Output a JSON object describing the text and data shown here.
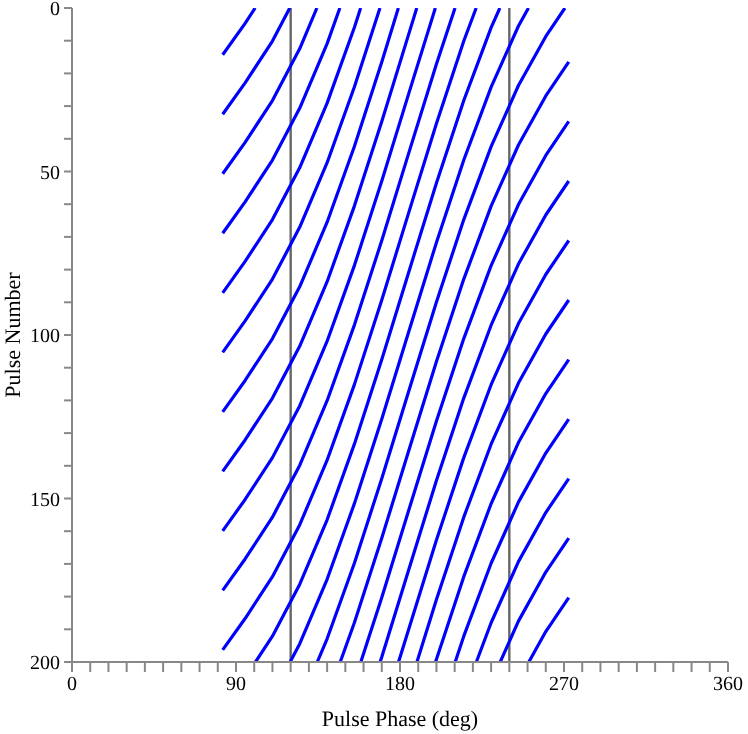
{
  "chart_data": {
    "type": "line",
    "xlabel": "Pulse Phase (deg)",
    "ylabel": "Pulse Number",
    "xlim": [
      0,
      360
    ],
    "ylim": [
      200,
      0
    ],
    "xticks": [
      0,
      {
        "value": 10,
        "label": null
      },
      {
        "value": 20,
        "label": null
      },
      {
        "value": 30,
        "label": null
      },
      {
        "value": 40,
        "label": null
      },
      {
        "value": 50,
        "label": null
      },
      {
        "value": 60,
        "label": null
      },
      {
        "value": 70,
        "label": null
      },
      {
        "value": 80,
        "label": null
      },
      90,
      {
        "value": 100,
        "label": null
      },
      {
        "value": 110,
        "label": null
      },
      {
        "value": 120,
        "label": null
      },
      {
        "value": 130,
        "label": null
      },
      {
        "value": 140,
        "label": null
      },
      {
        "value": 150,
        "label": null
      },
      {
        "value": 160,
        "label": null
      },
      {
        "value": 170,
        "label": null
      },
      180,
      {
        "value": 190,
        "label": null
      },
      {
        "value": 200,
        "label": null
      },
      {
        "value": 210,
        "label": null
      },
      {
        "value": 220,
        "label": null
      },
      {
        "value": 230,
        "label": null
      },
      {
        "value": 240,
        "label": null
      },
      {
        "value": 250,
        "label": null
      },
      {
        "value": 260,
        "label": null
      },
      270,
      {
        "value": 280,
        "label": null
      },
      {
        "value": 290,
        "label": null
      },
      {
        "value": 300,
        "label": null
      },
      {
        "value": 310,
        "label": null
      },
      {
        "value": 320,
        "label": null
      },
      {
        "value": 330,
        "label": null
      },
      {
        "value": 340,
        "label": null
      },
      {
        "value": 350,
        "label": null
      },
      360
    ],
    "yticks": [
      0,
      {
        "value": 10,
        "label": null
      },
      {
        "value": 20,
        "label": null
      },
      {
        "value": 30,
        "label": null
      },
      {
        "value": 40,
        "label": null
      },
      50,
      {
        "value": 60,
        "label": null
      },
      {
        "value": 70,
        "label": null
      },
      {
        "value": 80,
        "label": null
      },
      {
        "value": 90,
        "label": null
      },
      100,
      {
        "value": 110,
        "label": null
      },
      {
        "value": 120,
        "label": null
      },
      {
        "value": 130,
        "label": null
      },
      {
        "value": 140,
        "label": null
      },
      150,
      {
        "value": 160,
        "label": null
      },
      {
        "value": 170,
        "label": null
      },
      {
        "value": 180,
        "label": null
      },
      {
        "value": 190,
        "label": null
      },
      200
    ],
    "marker": "none",
    "line_style": "solid",
    "ref_lines": [
      {
        "axis": "x",
        "value": 120,
        "color": "#666666"
      },
      {
        "axis": "x",
        "value": 240,
        "color": "#666666"
      }
    ],
    "series": [
      {
        "color": "#0000ff",
        "x": [
          82.7,
          95,
          100.5
        ],
        "values": [
          14.3,
          4.7,
          0
        ]
      },
      {
        "color": "#0000ff",
        "x": [
          82.7,
          95,
          110,
          119.5
        ],
        "values": [
          32.5,
          22.9,
          10.1,
          0
        ]
      },
      {
        "color": "#0000ff",
        "x": [
          82.7,
          95,
          110,
          125,
          134.4
        ],
        "values": [
          50.7,
          41.1,
          28.3,
          12.4,
          0
        ]
      },
      {
        "color": "#0000ff",
        "x": [
          82.7,
          95,
          110,
          125,
          140,
          147.0
        ],
        "values": [
          68.9,
          59.3,
          46.5,
          30.6,
          10.9,
          0
        ]
      },
      {
        "color": "#0000ff",
        "x": [
          82.7,
          95,
          110,
          125,
          140,
          155,
          158.4
        ],
        "values": [
          87.1,
          77.5,
          64.7,
          48.8,
          29.1,
          5.9,
          0
        ]
      },
      {
        "color": "#0000ff",
        "x": [
          82.7,
          95,
          110,
          125,
          140,
          155,
          169.0
        ],
        "values": [
          105.3,
          95.7,
          82.9,
          67.0,
          47.3,
          24.1,
          0
        ]
      },
      {
        "color": "#0000ff",
        "x": [
          82.7,
          95,
          110,
          125,
          140,
          155,
          170,
          179.1
        ],
        "values": [
          123.5,
          113.9,
          101.1,
          85.2,
          65.5,
          42.3,
          16.5,
          0
        ]
      },
      {
        "color": "#0000ff",
        "x": [
          82.7,
          95,
          110,
          125,
          140,
          155,
          170,
          185,
          189.2
        ],
        "values": [
          141.7,
          132.1,
          119.3,
          103.4,
          83.7,
          60.5,
          34.7,
          7.6,
          0
        ]
      },
      {
        "color": "#0000ff",
        "x": [
          82.7,
          95,
          110,
          125,
          140,
          155,
          170,
          185,
          199.4
        ],
        "values": [
          159.9,
          150.3,
          137.5,
          121.6,
          101.9,
          78.7,
          52.9,
          25.8,
          0
        ]
      },
      {
        "color": "#0000ff",
        "x": [
          82.7,
          95,
          110,
          125,
          140,
          155,
          170,
          185,
          200,
          210.2
        ],
        "values": [
          178.1,
          168.5,
          155.7,
          139.8,
          120.1,
          96.9,
          71.1,
          44.0,
          17.1,
          0
        ]
      },
      {
        "color": "#0000ff",
        "x": [
          82.7,
          95,
          110,
          125,
          140,
          155,
          170,
          185,
          200,
          215,
          221.8
        ],
        "values": [
          196.3,
          186.7,
          173.9,
          158.0,
          138.3,
          115.1,
          89.3,
          62.2,
          35.3,
          10.1,
          0
        ]
      },
      {
        "color": "#0000ff",
        "x": [
          100.7,
          110,
          125,
          140,
          155,
          170,
          185,
          200,
          215,
          230,
          234.8
        ],
        "values": [
          200,
          192.1,
          176.2,
          156.5,
          133.3,
          107.5,
          80.4,
          53.5,
          28.3,
          6.0,
          0
        ]
      },
      {
        "color": "#0000ff",
        "x": [
          119.7,
          125,
          140,
          155,
          170,
          185,
          200,
          215,
          230,
          245,
          250.5
        ],
        "values": [
          200,
          194.4,
          174.7,
          151.5,
          125.7,
          98.6,
          71.7,
          46.5,
          24.2,
          5.5,
          0
        ]
      },
      {
        "color": "#0000ff",
        "x": [
          134.6,
          140,
          155,
          170,
          185,
          200,
          215,
          230,
          245,
          260,
          270.5
        ],
        "values": [
          200,
          192.9,
          169.7,
          143.9,
          116.8,
          89.9,
          64.7,
          42.4,
          23.7,
          8.7,
          0
        ]
      },
      {
        "color": "#0000ff",
        "x": [
          147.2,
          155,
          170,
          185,
          200,
          215,
          230,
          245,
          260,
          272.6
        ],
        "values": [
          200,
          187.9,
          162.1,
          135.0,
          108.1,
          82.9,
          60.6,
          41.9,
          26.9,
          16.5
        ]
      },
      {
        "color": "#0000ff",
        "x": [
          158.5,
          170,
          185,
          200,
          215,
          230,
          245,
          260,
          272.6
        ],
        "values": [
          200,
          180.3,
          153.2,
          126.3,
          101.1,
          78.8,
          60.1,
          45.1,
          34.7
        ]
      },
      {
        "color": "#0000ff",
        "x": [
          169.1,
          170,
          185,
          200,
          215,
          230,
          245,
          260,
          272.6
        ],
        "values": [
          200,
          198.5,
          171.4,
          144.5,
          119.3,
          97.0,
          78.3,
          63.3,
          52.9
        ]
      },
      {
        "color": "#0000ff",
        "x": [
          179.2,
          185,
          200,
          215,
          230,
          245,
          260,
          272.6
        ],
        "values": [
          200,
          189.6,
          162.7,
          137.5,
          115.2,
          96.5,
          81.5,
          71.1
        ]
      },
      {
        "color": "#0000ff",
        "x": [
          189.3,
          200,
          215,
          230,
          245,
          260,
          272.6
        ],
        "values": [
          200,
          180.9,
          155.7,
          133.4,
          114.7,
          99.7,
          89.3
        ]
      },
      {
        "color": "#0000ff",
        "x": [
          199.5,
          215,
          230,
          245,
          260,
          272.6
        ],
        "values": [
          200,
          173.9,
          151.6,
          132.9,
          117.9,
          107.5
        ]
      },
      {
        "color": "#0000ff",
        "x": [
          210.3,
          215,
          230,
          245,
          260,
          272.6
        ],
        "values": [
          200,
          192.1,
          169.8,
          151.1,
          136.1,
          125.7
        ]
      },
      {
        "color": "#0000ff",
        "x": [
          221.9,
          230,
          245,
          260,
          272.6
        ],
        "values": [
          200,
          188.0,
          169.3,
          154.3,
          143.9
        ]
      },
      {
        "color": "#0000ff",
        "x": [
          235.0,
          245,
          260,
          272.6
        ],
        "values": [
          200,
          187.5,
          172.5,
          162.1
        ]
      },
      {
        "color": "#0000ff",
        "x": [
          250.7,
          260,
          272.6
        ],
        "values": [
          200,
          190.7,
          180.3
        ]
      }
    ]
  }
}
